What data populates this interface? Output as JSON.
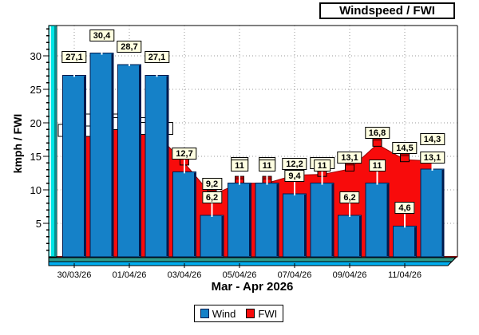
{
  "title": "Windspeed / FWI",
  "y_axis": {
    "label": "kmph / FWI",
    "tick_values": [
      5,
      10,
      15,
      20,
      25,
      30
    ]
  },
  "x_axis": {
    "title": "Mar - Apr 2026",
    "tick_labels": [
      "30/03/26",
      "01/04/26",
      "03/04/26",
      "05/04/26",
      "07/04/26",
      "09/04/26",
      "11/04/26"
    ]
  },
  "legend": {
    "items": [
      {
        "label": "Wind",
        "color": "#1581C8",
        "border": "#001A4D"
      },
      {
        "label": "FWI",
        "color": "#F80B0B",
        "border": "#000000"
      }
    ]
  },
  "colors": {
    "bar_fill": "#1581C8",
    "bar_edge": "#001A4D",
    "area_fill": "#F80B0B",
    "area_edge": "#990000",
    "marker_top": "#B00000",
    "baseline": "#7B1010",
    "gridline": "#9A9A9A",
    "label_box_bg": "#FFFFE1",
    "wall_cyan": "#00E6E6",
    "wall_dark": "#0A8C8C",
    "wall_highlight": "#C8FFFF",
    "floor_top": "#2E9B8C",
    "floor_bottom": "#00AEEF"
  },
  "chart_data": {
    "type": "bar",
    "title": "Windspeed / FWI",
    "xlabel": "Mar - Apr 2026",
    "ylabel": "kmph / FWI",
    "ylim": [
      0,
      34.5
    ],
    "grid": "dotted",
    "legend_position": "bottom",
    "x_tick_labels": [
      "30/03/26",
      "01/04/26",
      "03/04/26",
      "05/04/26",
      "07/04/26",
      "09/04/26",
      "11/04/26"
    ],
    "days": 14,
    "series": [
      {
        "name": "Wind",
        "type": "bar",
        "color": "#1581C8",
        "values": [
          27.1,
          30.4,
          28.7,
          27.1,
          12.7,
          6.2,
          11,
          11,
          9.4,
          11,
          6.2,
          11,
          4.6,
          13.1
        ],
        "labels": [
          "27,1",
          "30,4",
          "28,7",
          "27,1",
          "12,7",
          "6,2",
          "11",
          "11",
          "9,4",
          "11",
          "6,2",
          "11",
          "4,6",
          "13,1"
        ]
      },
      {
        "name": "FWI",
        "type": "area",
        "color": "#F80B0B",
        "values": [
          18,
          19.5,
          19,
          18.3,
          14,
          9.2,
          11,
          11,
          12.2,
          12.3,
          13.1,
          16.8,
          14.5,
          14.3
        ],
        "labels": [
          null,
          null,
          null,
          null,
          null,
          "9,2",
          "11",
          "11",
          "12,2",
          "12,3",
          "13,1",
          "16,8",
          "14,5",
          "14,3"
        ],
        "hidden_label_days": [
          0,
          1,
          2,
          3
        ],
        "estimated_value_days": [
          0,
          1,
          2,
          3,
          4
        ]
      }
    ]
  }
}
